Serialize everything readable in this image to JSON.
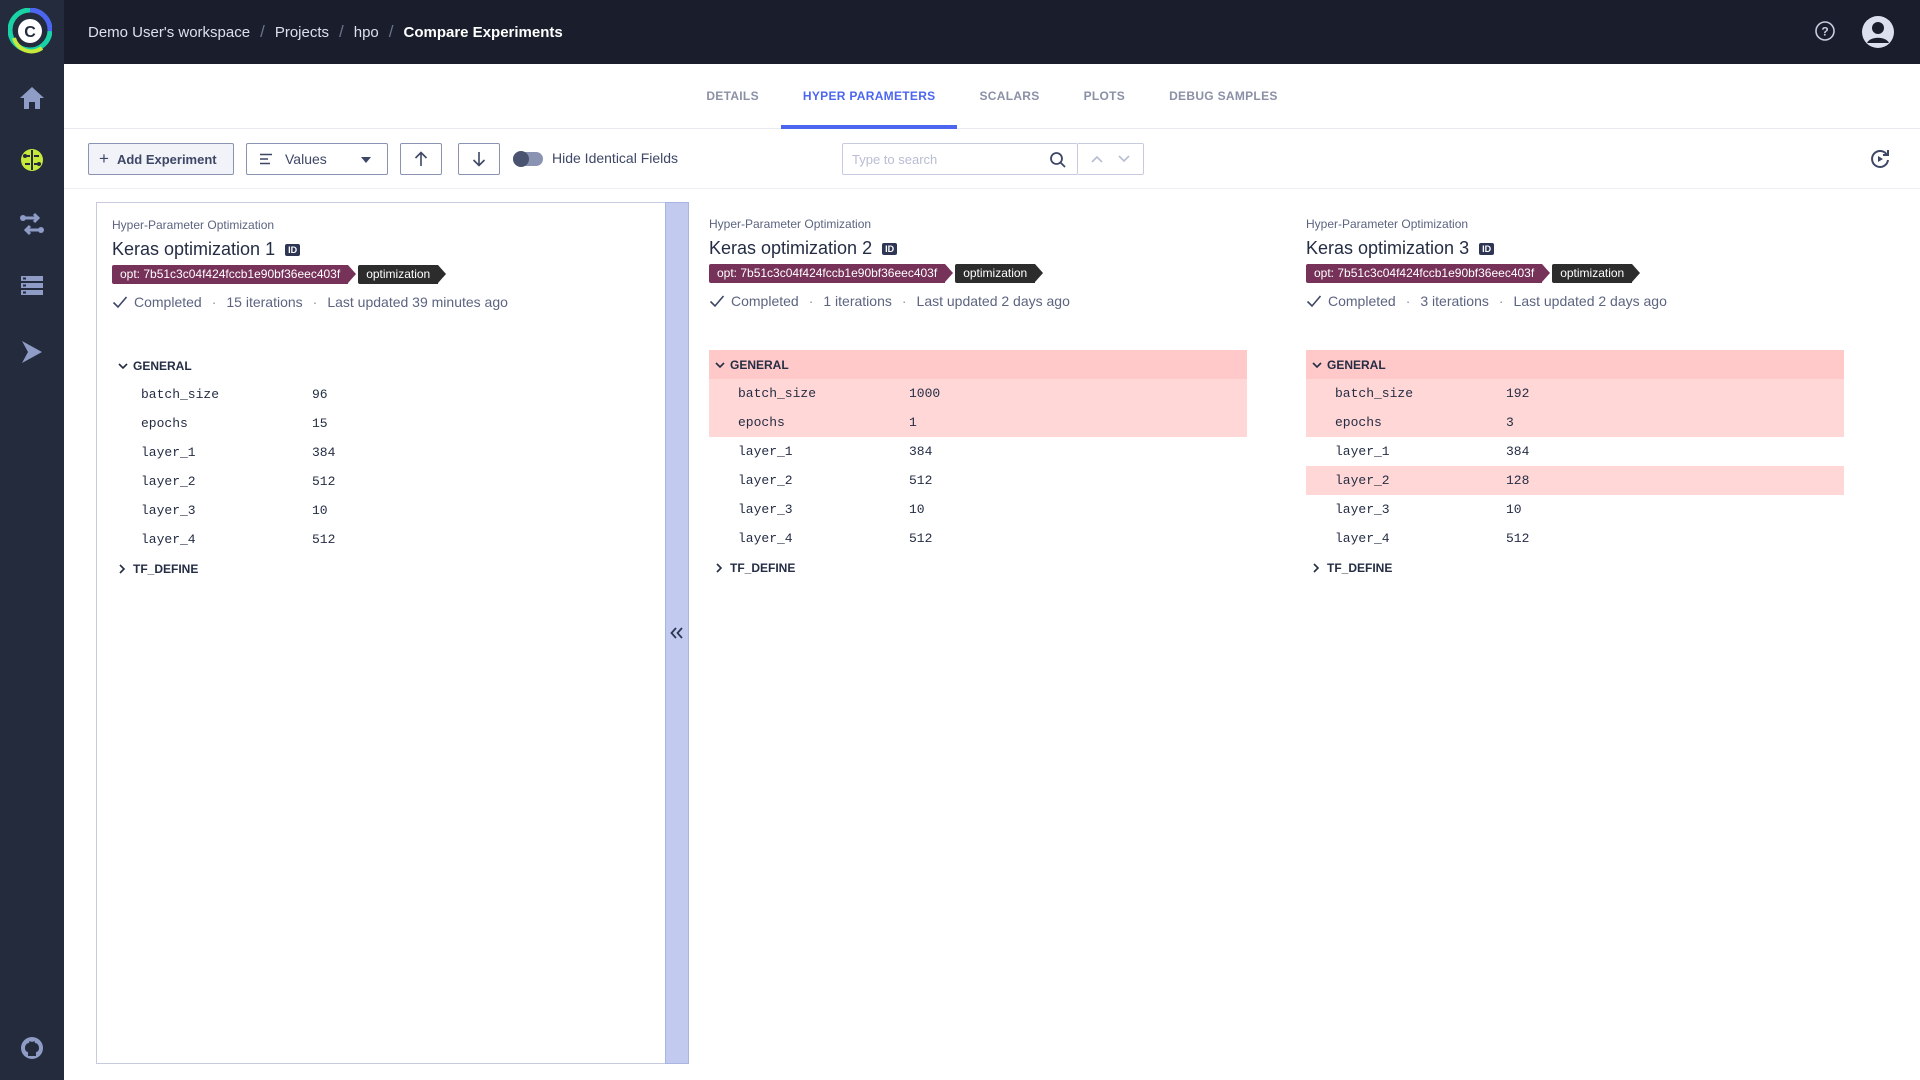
{
  "breadcrumb": {
    "workspace": "Demo User's workspace",
    "projects": "Projects",
    "project": "hpo",
    "current": "Compare Experiments"
  },
  "tabs": [
    {
      "label": "DETAILS",
      "active": false
    },
    {
      "label": "HYPER PARAMETERS",
      "active": true
    },
    {
      "label": "SCALARS",
      "active": false
    },
    {
      "label": "PLOTS",
      "active": false
    },
    {
      "label": "DEBUG SAMPLES",
      "active": false
    }
  ],
  "toolbar": {
    "add_label": "Add Experiment",
    "view_mode": "Values",
    "hide_identical_label": "Hide Identical Fields",
    "hide_identical_on": false,
    "search_placeholder": "Type to search"
  },
  "colors": {
    "accent": "#4d66f0",
    "diff_bg": "#ffd7d7",
    "tag_opt": "#77325a",
    "tag_dark": "#2c2c2c",
    "sidebar_active": "#c7ea3a"
  },
  "experiments": [
    {
      "type": "Hyper-Parameter Optimization",
      "name": "Keras optimization 1",
      "id_badge": "ID",
      "tags": [
        "opt: 7b51c3c04f424fccb1e90bf36eec403f",
        "optimization"
      ],
      "status": "Completed",
      "iterations": "15 iterations",
      "updated": "Last updated 39 minutes ago",
      "general_label": "GENERAL",
      "general_diff": false,
      "params": [
        {
          "key": "batch_size",
          "value": "96",
          "diff": false
        },
        {
          "key": "epochs",
          "value": "15",
          "diff": false
        },
        {
          "key": "layer_1",
          "value": "384",
          "diff": false
        },
        {
          "key": "layer_2",
          "value": "512",
          "diff": false
        },
        {
          "key": "layer_3",
          "value": "10",
          "diff": false
        },
        {
          "key": "layer_4",
          "value": "512",
          "diff": false
        }
      ],
      "tf_label": "TF_DEFINE"
    },
    {
      "type": "Hyper-Parameter Optimization",
      "name": "Keras optimization 2",
      "id_badge": "ID",
      "tags": [
        "opt: 7b51c3c04f424fccb1e90bf36eec403f",
        "optimization"
      ],
      "status": "Completed",
      "iterations": "1 iterations",
      "updated": "Last updated 2 days ago",
      "general_label": "GENERAL",
      "general_diff": true,
      "params": [
        {
          "key": "batch_size",
          "value": "1000",
          "diff": true
        },
        {
          "key": "epochs",
          "value": "1",
          "diff": true
        },
        {
          "key": "layer_1",
          "value": "384",
          "diff": false
        },
        {
          "key": "layer_2",
          "value": "512",
          "diff": false
        },
        {
          "key": "layer_3",
          "value": "10",
          "diff": false
        },
        {
          "key": "layer_4",
          "value": "512",
          "diff": false
        }
      ],
      "tf_label": "TF_DEFINE"
    },
    {
      "type": "Hyper-Parameter Optimization",
      "name": "Keras optimization 3",
      "id_badge": "ID",
      "tags": [
        "opt: 7b51c3c04f424fccb1e90bf36eec403f",
        "optimization"
      ],
      "status": "Completed",
      "iterations": "3 iterations",
      "updated": "Last updated 2 days ago",
      "general_label": "GENERAL",
      "general_diff": true,
      "params": [
        {
          "key": "batch_size",
          "value": "192",
          "diff": true
        },
        {
          "key": "epochs",
          "value": "3",
          "diff": true
        },
        {
          "key": "layer_1",
          "value": "384",
          "diff": false
        },
        {
          "key": "layer_2",
          "value": "128",
          "diff": true
        },
        {
          "key": "layer_3",
          "value": "10",
          "diff": false
        },
        {
          "key": "layer_4",
          "value": "512",
          "diff": false
        }
      ],
      "tf_label": "TF_DEFINE"
    }
  ],
  "icons": {
    "logo": "clearml-logo",
    "sidebar": [
      "home-icon",
      "experiments-brain-icon",
      "pipelines-icon",
      "datasets-icon",
      "deploy-icon",
      "github-icon"
    ],
    "header": [
      "help-icon",
      "user-avatar-icon"
    ]
  }
}
